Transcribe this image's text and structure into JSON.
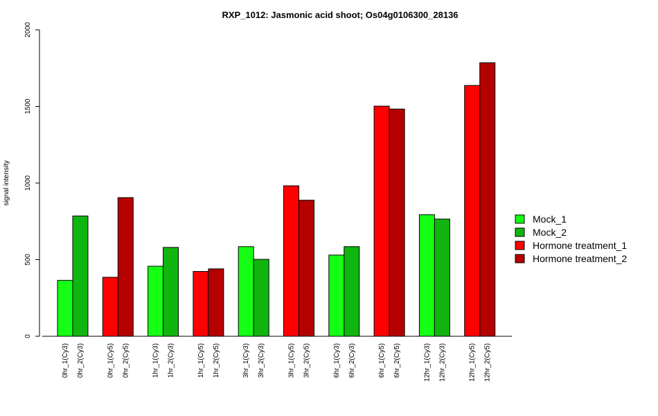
{
  "chart_data": {
    "type": "bar",
    "title": "RXP_1012: Jasmonic acid shoot; Os04g0106300_28136",
    "ylabel": "signal intensity",
    "xlabel": "",
    "ylim": [
      0,
      2000
    ],
    "yticks": [
      0,
      500,
      1000,
      1500,
      2000
    ],
    "grid": false,
    "legend_position": "right",
    "legend": [
      {
        "name": "Mock_1",
        "color": "#14ff14"
      },
      {
        "name": "Mock_2",
        "color": "#10b510"
      },
      {
        "name": "Hormone treatment_1",
        "color": "#ff0000"
      },
      {
        "name": "Hormone treatment_2",
        "color": "#b50000"
      }
    ],
    "groups": [
      {
        "bars": [
          {
            "label": "0hr_1(Cy3)",
            "value": 365,
            "color": "#14ff14"
          },
          {
            "label": "0hr_2(Cy3)",
            "value": 785,
            "color": "#10b510"
          }
        ]
      },
      {
        "bars": [
          {
            "label": "0hr_1(Cy5)",
            "value": 385,
            "color": "#ff0000"
          },
          {
            "label": "0hr_2(Cy5)",
            "value": 905,
            "color": "#b50000"
          }
        ]
      },
      {
        "bars": [
          {
            "label": "1hr_1(Cy3)",
            "value": 457,
            "color": "#14ff14"
          },
          {
            "label": "1hr_2(Cy3)",
            "value": 580,
            "color": "#10b510"
          }
        ]
      },
      {
        "bars": [
          {
            "label": "1hr_1(Cy5)",
            "value": 423,
            "color": "#ff0000"
          },
          {
            "label": "1hr_2(Cy5)",
            "value": 440,
            "color": "#b50000"
          }
        ]
      },
      {
        "bars": [
          {
            "label": "3hr_1(Cy3)",
            "value": 585,
            "color": "#14ff14"
          },
          {
            "label": "3hr_2(Cy3)",
            "value": 502,
            "color": "#10b510"
          }
        ]
      },
      {
        "bars": [
          {
            "label": "3hr_1(Cy5)",
            "value": 982,
            "color": "#ff0000"
          },
          {
            "label": "3hr_2(Cy5)",
            "value": 888,
            "color": "#b50000"
          }
        ]
      },
      {
        "bars": [
          {
            "label": "6hr_1(Cy3)",
            "value": 530,
            "color": "#14ff14"
          },
          {
            "label": "6hr_2(Cy3)",
            "value": 585,
            "color": "#10b510"
          }
        ]
      },
      {
        "bars": [
          {
            "label": "6hr_1(Cy5)",
            "value": 1502,
            "color": "#ff0000"
          },
          {
            "label": "6hr_2(Cy5)",
            "value": 1483,
            "color": "#b50000"
          }
        ]
      },
      {
        "bars": [
          {
            "label": "12hr_1(Cy3)",
            "value": 793,
            "color": "#14ff14"
          },
          {
            "label": "12hr_2(Cy3)",
            "value": 765,
            "color": "#10b510"
          }
        ]
      },
      {
        "bars": [
          {
            "label": "12hr_1(Cy5)",
            "value": 1637,
            "color": "#ff0000"
          },
          {
            "label": "12hr_2(Cy5)",
            "value": 1785,
            "color": "#b50000"
          }
        ]
      }
    ]
  }
}
